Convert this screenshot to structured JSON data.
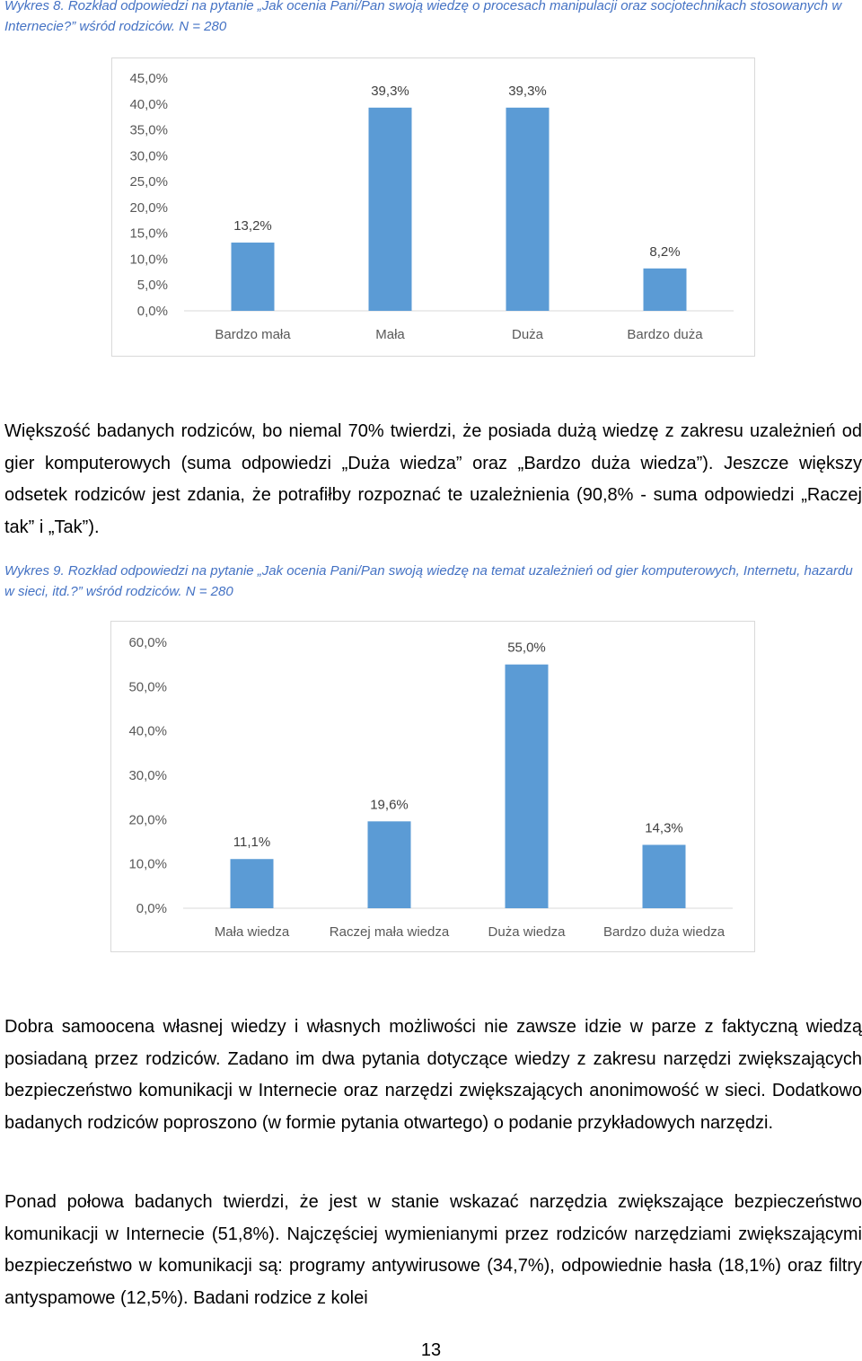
{
  "chart1": {
    "caption": "Wykres 8. Rozkład odpowiedzi na pytanie „Jak ocenia Pani/Pan swoją wiedzę o procesach manipulacji oraz socjotechnikach stosowanych w Internecie?” wśród rodziców. N = 280"
  },
  "chart2": {
    "caption": "Wykres 9. Rozkład odpowiedzi na pytanie „Jak ocenia Pani/Pan swoją wiedzę na temat uzależnień od gier komputerowych, Internetu, hazardu w sieci, itd.?” wśród rodziców. N = 280"
  },
  "chart_data": [
    {
      "type": "bar",
      "categories": [
        "Bardzo mała",
        "Mała",
        "Duża",
        "Bardzo duża"
      ],
      "values": [
        13.2,
        39.3,
        39.3,
        8.2
      ],
      "value_labels": [
        "13,2%",
        "39,3%",
        "39,3%",
        "8,2%"
      ],
      "y_ticks": [
        "0,0%",
        "5,0%",
        "10,0%",
        "15,0%",
        "20,0%",
        "25,0%",
        "30,0%",
        "35,0%",
        "40,0%",
        "45,0%"
      ],
      "ylim": [
        0,
        45
      ],
      "bar_color": "#5b9bd5",
      "grid": false
    },
    {
      "type": "bar",
      "categories": [
        "Mała wiedza",
        "Raczej mała wiedza",
        "Duża wiedza",
        "Bardzo duża wiedza"
      ],
      "values": [
        11.1,
        19.6,
        55.0,
        14.3
      ],
      "value_labels": [
        "11,1%",
        "19,6%",
        "55,0%",
        "14,3%"
      ],
      "y_ticks": [
        "0,0%",
        "10,0%",
        "20,0%",
        "30,0%",
        "40,0%",
        "50,0%",
        "60,0%"
      ],
      "ylim": [
        0,
        60
      ],
      "bar_color": "#5b9bd5",
      "grid": false
    }
  ],
  "paragraphs": {
    "p1": "Większość badanych rodziców, bo niemal 70% twierdzi, że posiada dużą wiedzę z zakresu uzależnień od gier komputerowych (suma odpowiedzi „Duża wiedza” oraz „Bardzo duża wiedza”). Jeszcze większy odsetek rodziców jest zdania, że potrafiłby rozpoznać te uzależnienia (90,8% - suma odpowiedzi „Raczej tak” i „Tak”).",
    "p2": "Dobra samoocena własnej wiedzy i własnych możliwości nie zawsze idzie w parze z faktyczną wiedzą posiadaną przez rodziców. Zadano im dwa pytania dotyczące wiedzy z zakresu narzędzi zwiększających bezpieczeństwo komunikacji w Internecie oraz narzędzi zwiększających anonimowość w sieci. Dodatkowo badanych rodziców poproszono (w formie pytania otwartego) o podanie przykładowych narzędzi.",
    "p3": "Ponad połowa badanych twierdzi, że jest w stanie wskazać narzędzia zwiększające bezpieczeństwo komunikacji w Internecie (51,8%). Najczęściej wymienianymi przez rodziców narzędziami zwiększającymi bezpieczeństwo w komunikacji są: programy antywirusowe (34,7%), odpowiednie hasła (18,1%) oraz filtry antyspamowe (12,5%). Badani rodzice z kolei"
  },
  "page_number": "13"
}
